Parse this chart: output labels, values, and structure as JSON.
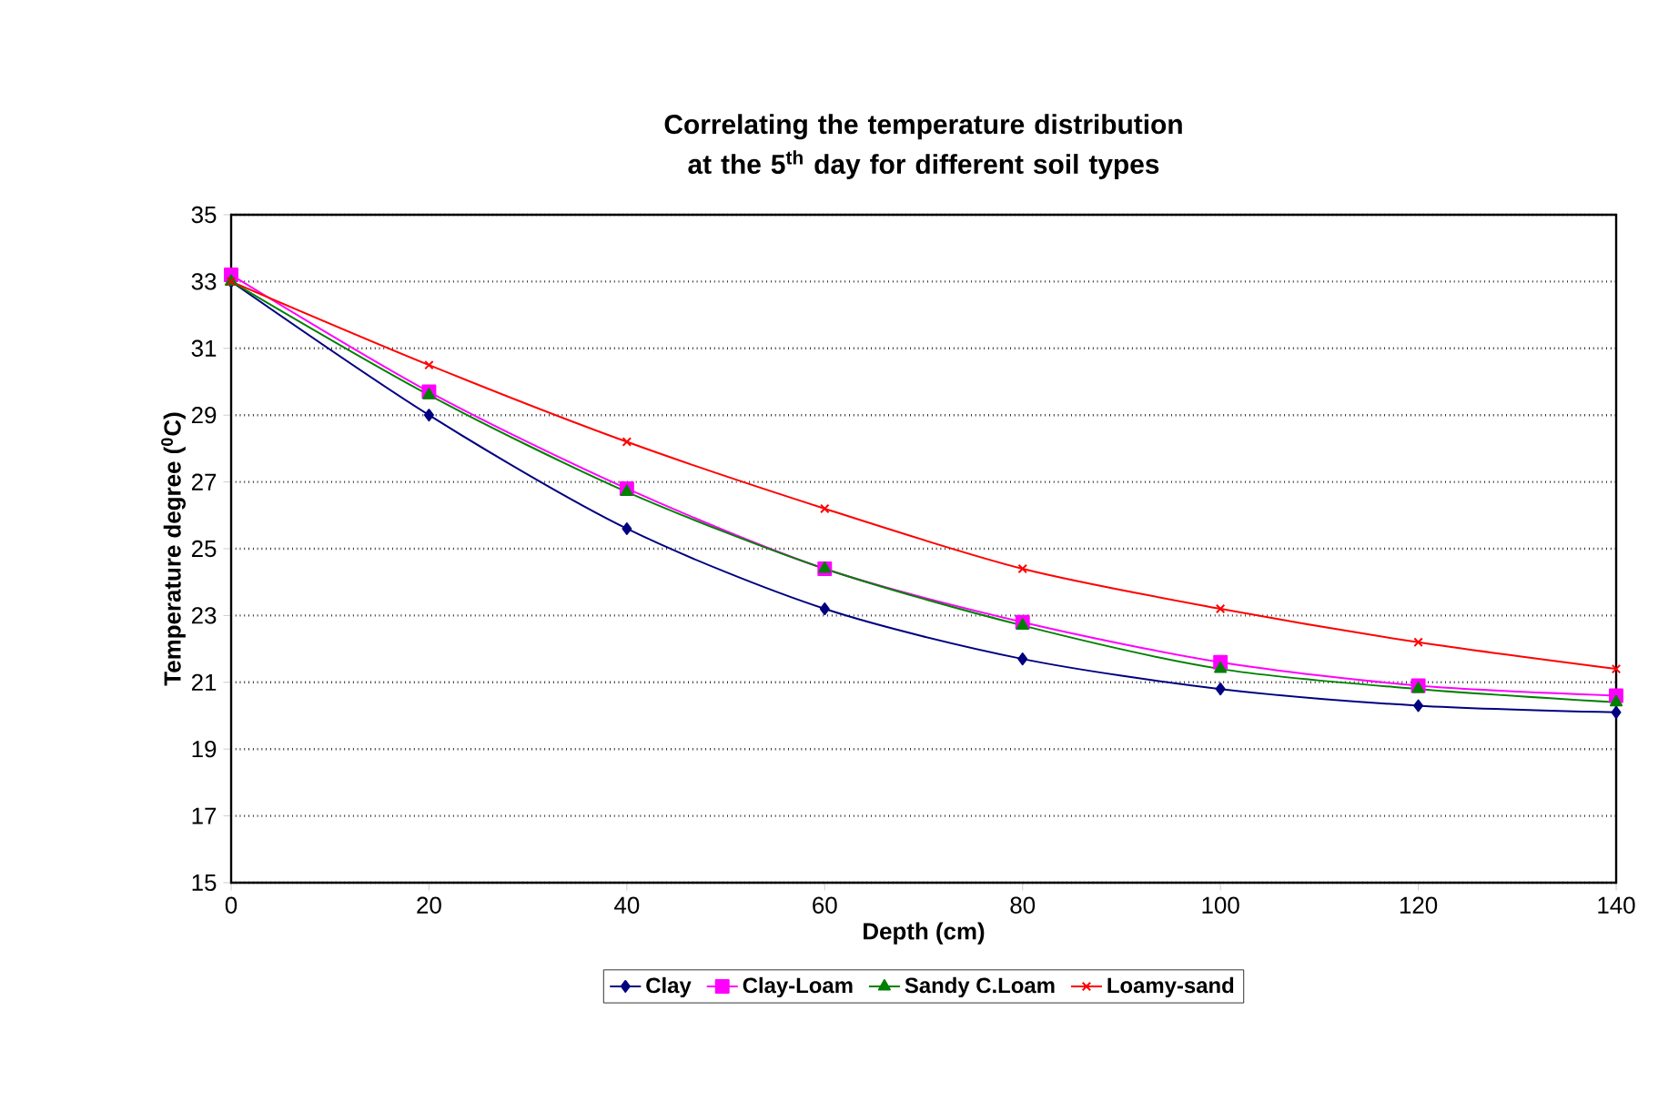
{
  "chart_data": {
    "type": "line",
    "title": "Correlating the temperature distribution at the 5$^{th}$ day for different soil types",
    "xlabel": "Depth (cm)",
    "ylabel": "Temperature degree ($^{0}$C)",
    "x": [
      0,
      20,
      40,
      60,
      80,
      100,
      120,
      140
    ],
    "series": [
      {
        "name": "Clay",
        "color": "#000080",
        "marker": "diamond",
        "values": [
          33.0,
          29.0,
          25.6,
          23.2,
          21.7,
          20.8,
          20.3,
          20.1
        ]
      },
      {
        "name": "Clay-Loam",
        "color": "#ff00ff",
        "marker": "square",
        "values": [
          33.2,
          29.7,
          26.8,
          24.4,
          22.8,
          21.6,
          20.9,
          20.6
        ]
      },
      {
        "name": "Sandy C.Loam",
        "color": "#008000",
        "marker": "triangle",
        "values": [
          33.0,
          29.6,
          26.7,
          24.4,
          22.7,
          21.4,
          20.8,
          20.4
        ]
      },
      {
        "name": "Loamy-sand",
        "color": "#ff0000",
        "marker": "cross",
        "values": [
          33.0,
          30.5,
          28.2,
          26.2,
          24.4,
          23.2,
          22.2,
          21.4
        ]
      }
    ],
    "xlim": [
      0,
      140
    ],
    "xticks": [
      0,
      20,
      40,
      60,
      80,
      100,
      120,
      140
    ],
    "ylim": [
      15,
      35
    ],
    "yticks": [
      15,
      17,
      19,
      21,
      23,
      25,
      27,
      29,
      31,
      33,
      35
    ],
    "grid": "y",
    "legend": "bottom",
    "line_style": "solid"
  }
}
